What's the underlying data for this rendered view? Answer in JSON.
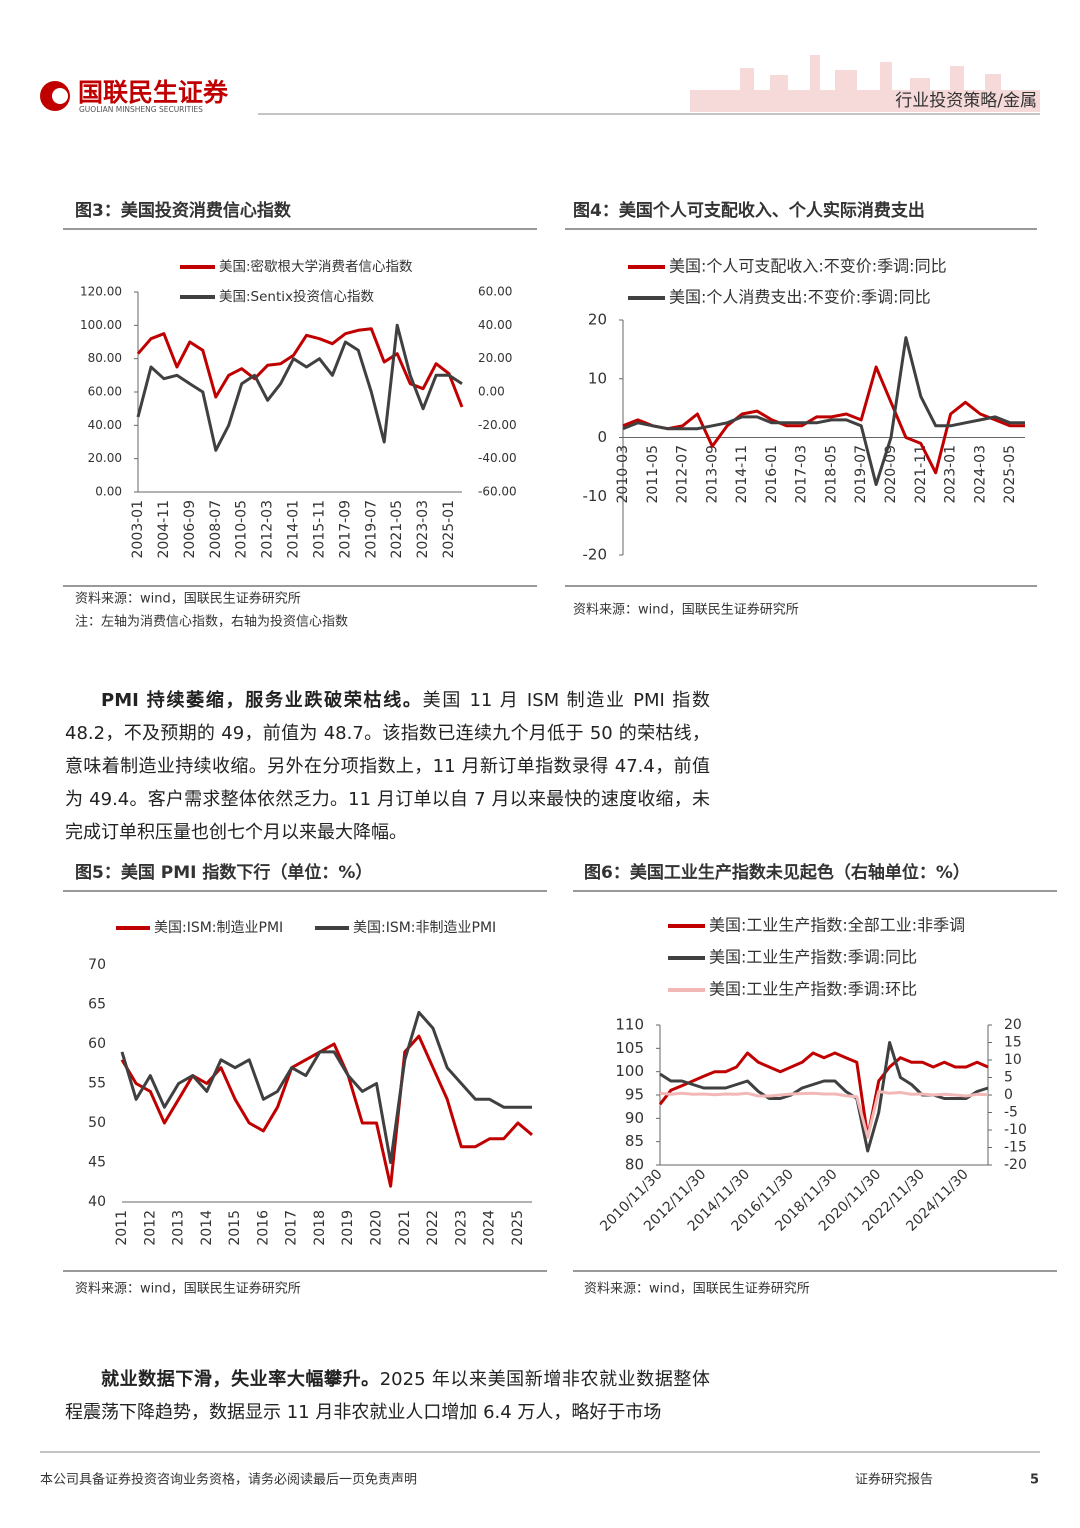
{
  "header": {
    "brand": "国联民生证券",
    "brand_en": "GUOLIAN MINSHENG SECURITIES",
    "section": "行业投资策略/金属"
  },
  "chart_data": [
    {
      "type": "line",
      "title": "图3：美国投资消费信心指数",
      "categories": [
        "2003-01",
        null,
        "2004-11",
        null,
        "2006-09",
        null,
        "2008-07",
        null,
        "2010-05",
        null,
        "2012-03",
        null,
        "2014-01",
        null,
        "2015-11",
        null,
        "2017-09",
        null,
        "2019-07",
        null,
        "2021-05",
        null,
        "2023-03",
        null,
        "2025-01",
        null
      ],
      "series": [
        {
          "name": "美国:密歇根大学消费者信心指数",
          "color": "#c00000",
          "values": [
            83,
            92,
            95,
            75,
            90,
            85,
            57,
            70,
            74,
            68,
            76,
            77,
            82,
            94,
            92,
            89,
            95,
            97,
            98,
            78,
            83,
            65,
            62,
            77,
            71,
            51
          ]
        },
        {
          "name": "美国:Sentix投资信心指数",
          "color": "#404040",
          "axis": "y2",
          "values": [
            -15,
            15,
            8,
            10,
            5,
            0,
            -35,
            -20,
            5,
            10,
            -5,
            5,
            20,
            15,
            20,
            10,
            30,
            25,
            0,
            -30,
            40,
            10,
            -10,
            10,
            10,
            5
          ]
        }
      ],
      "ylim": [
        0,
        120
      ],
      "yticks": [
        {
          "value": 0,
          "label": "0.00"
        },
        {
          "value": 20,
          "label": "20.00"
        },
        {
          "value": 40,
          "label": "40.00"
        },
        {
          "value": 60,
          "label": "60.00"
        },
        {
          "value": 80,
          "label": "80.00"
        },
        {
          "value": 100,
          "label": "100.00"
        },
        {
          "value": 120,
          "label": "120.00"
        }
      ],
      "y2lim": [
        -60,
        60
      ],
      "y2ticks": [
        {
          "value": -60,
          "label": "-60.00"
        },
        {
          "value": -40,
          "label": "-40.00"
        },
        {
          "value": -20,
          "label": "-20.00"
        },
        {
          "value": 0,
          "label": "0.00"
        },
        {
          "value": 20,
          "label": "20.00"
        },
        {
          "value": 40,
          "label": "40.00"
        },
        {
          "value": 60,
          "label": "60.00"
        }
      ],
      "source": "资料来源：wind，国联民生证券研究所",
      "note": "注：左轴为消费信心指数，右轴为投资信心指数"
    },
    {
      "type": "line",
      "title": "图4：美国个人可支配收入、个人实际消费支出",
      "categories": [
        "2010-03",
        null,
        "2011-05",
        null,
        "2012-07",
        null,
        "2013-09",
        null,
        "2014-11",
        null,
        "2016-01",
        null,
        "2017-03",
        null,
        "2018-05",
        null,
        "2019-07",
        null,
        "2020-09",
        null,
        "2021-11",
        null,
        "2023-01",
        null,
        "2024-03",
        null,
        "2025-05",
        null
      ],
      "series": [
        {
          "name": "美国:个人可支配收入:不变价:季调:同比",
          "color": "#c00000",
          "values": [
            2,
            3,
            2,
            1.5,
            2,
            4,
            -1.5,
            2,
            4,
            4.5,
            3,
            2,
            2,
            3.5,
            3.5,
            4,
            3,
            12,
            6,
            0,
            -1,
            -6,
            4,
            6,
            4,
            3,
            2,
            2
          ]
        },
        {
          "name": "美国:个人消费支出:不变价:季调:同比",
          "color": "#404040",
          "values": [
            1.5,
            2.5,
            2,
            1.5,
            1.5,
            1.5,
            2,
            2.5,
            3.5,
            3.5,
            2.5,
            2.5,
            2.5,
            2.5,
            3,
            3,
            2,
            -8,
            0,
            17,
            7,
            2,
            2,
            2.5,
            3,
            3.5,
            2.5,
            2.5
          ]
        }
      ],
      "ylim": [
        -20,
        20
      ],
      "yticks": [
        -20,
        -10,
        0,
        10,
        20
      ],
      "source": "资料来源：wind，国联民生证券研究所"
    },
    {
      "type": "line",
      "title": "图5：美国 PMI 指数下行（单位：%）",
      "categories": [
        "2011",
        null,
        "2012",
        null,
        "2013",
        null,
        "2014",
        null,
        "2015",
        null,
        "2016",
        null,
        "2017",
        null,
        "2018",
        null,
        "2019",
        null,
        "2020",
        null,
        "2021",
        null,
        "2022",
        null,
        "2023",
        null,
        "2024",
        null,
        "2025",
        null
      ],
      "series": [
        {
          "name": "美国:ISM:制造业PMI",
          "color": "#c00000",
          "values": [
            58,
            55,
            54,
            50,
            53,
            56,
            55,
            57,
            53,
            50,
            49,
            52,
            57,
            58,
            59,
            60,
            56,
            50,
            50,
            42,
            59,
            61,
            57,
            53,
            47,
            47,
            48,
            48,
            50,
            48.5
          ]
        },
        {
          "name": "美国:ISM:非制造业PMI",
          "color": "#404040",
          "values": [
            59,
            53,
            56,
            52,
            55,
            56,
            54,
            58,
            57,
            58,
            53,
            54,
            57,
            56,
            59,
            59,
            56,
            54,
            55,
            45,
            58,
            64,
            62,
            57,
            55,
            53,
            53,
            52,
            52,
            52
          ]
        }
      ],
      "ylim": [
        40,
        70
      ],
      "yticks": [
        40,
        45,
        50,
        55,
        60,
        65,
        70
      ],
      "source": "资料来源：wind，国联民生证券研究所"
    },
    {
      "type": "line",
      "title": "图6：美国工业生产指数未见起色（右轴单位：%）",
      "categories": [
        "2010/11/30",
        null,
        null,
        null,
        "2012/11/30",
        null,
        null,
        null,
        "2014/11/30",
        null,
        null,
        null,
        "2016/11/30",
        null,
        null,
        null,
        "2018/11/30",
        null,
        null,
        null,
        "2020/11/30",
        null,
        null,
        null,
        "2022/11/30",
        null,
        null,
        null,
        "2024/11/30",
        null,
        null
      ],
      "series": [
        {
          "name": "美国:工业生产指数:全部工业:非季调",
          "color": "#c00000",
          "values": [
            93,
            96,
            97,
            98,
            99,
            100,
            100,
            101,
            104,
            102,
            101,
            100,
            101,
            102,
            104,
            103,
            104,
            103,
            102,
            86,
            98,
            101,
            103,
            102,
            102,
            101,
            102,
            101,
            101,
            102,
            101
          ]
        },
        {
          "name": "美国:工业生产指数:季调:同比",
          "color": "#404040",
          "axis": "y2",
          "values": [
            6,
            4,
            4,
            3,
            2,
            2,
            2,
            3,
            4,
            1,
            -1,
            -1,
            0,
            2,
            3,
            4,
            4,
            1,
            -1,
            -16,
            -5,
            15,
            5,
            3,
            0,
            0,
            -1,
            -1,
            -1,
            1,
            2
          ]
        },
        {
          "name": "美国:工业生产指数:季调:环比",
          "color": "#f2b8b8",
          "axis": "y2",
          "values": [
            0.5,
            0.2,
            0.5,
            0.2,
            0.3,
            0.1,
            0.3,
            0.2,
            0.5,
            -0.3,
            -0.3,
            0,
            0.3,
            0.4,
            0.5,
            0.3,
            0.3,
            -0.2,
            -0.5,
            -12,
            1,
            0.5,
            0.7,
            0.2,
            0.3,
            0,
            0.2,
            0,
            -0.3,
            0.2,
            0.1
          ]
        }
      ],
      "ylim": [
        80,
        110
      ],
      "yticks": [
        80,
        85,
        90,
        95,
        100,
        105,
        110
      ],
      "y2lim": [
        -20,
        20
      ],
      "y2ticks": [
        -20,
        -15,
        -10,
        -5,
        0,
        5,
        10,
        15,
        20
      ],
      "source": "资料来源：wind，国联民生证券研究所"
    }
  ],
  "paragraphs": [
    {
      "lead": "PMI 持续萎缩，服务业跌破荣枯线。",
      "text": "美国 11 月 ISM 制造业 PMI 指数 48.2，不及预期的 49，前值为 48.7。该指数已连续九个月低于 50 的荣枯线，意味着制造业持续收缩。另外在分项指数上，11 月新订单指数录得 47.4，前值为 49.4。客户需求整体依然乏力。11 月订单以自 7 月以来最快的速度收缩，未完成订单积压量也创七个月以来最大降幅。"
    },
    {
      "lead": "就业数据下滑，失业率大幅攀升。",
      "text": "2025 年以来美国新增非农就业数据整体程震荡下降趋势，数据显示 11 月非农就业人口增加 6.4 万人，略好于市场"
    }
  ],
  "footer": {
    "disclaimer": "本公司具备证券投资咨询业务资格，请务必阅读最后一页免责声明",
    "type": "证券研究报告",
    "page": "5"
  }
}
